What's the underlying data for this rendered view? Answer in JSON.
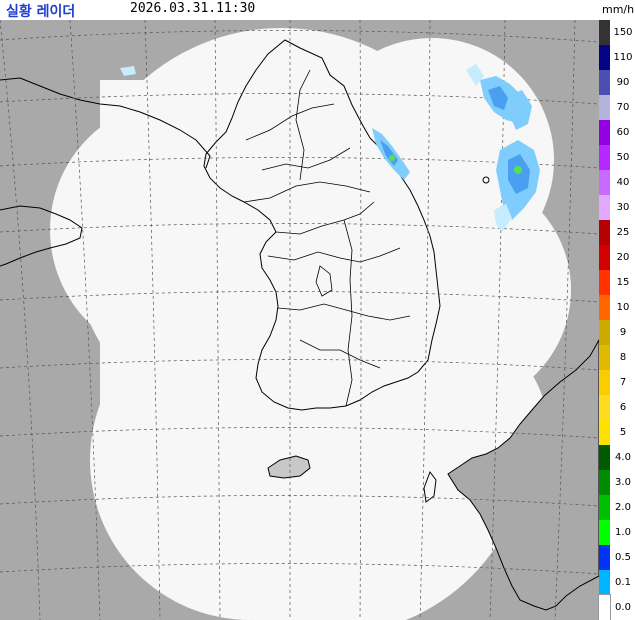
{
  "header": {
    "title": "실황 레이더",
    "timestamp": "2026.03.31.11:30",
    "unit": "mm/h"
  },
  "map": {
    "outside_color": "#a9a9a9",
    "coverage_color": "#f7f7f7",
    "land_outline_color": "#000000",
    "grid_line_style": "dashed",
    "echo_colors": [
      "#c6ecfd",
      "#7fcdfd",
      "#4a9ff0",
      "#58e14f",
      "#2daa2b"
    ]
  },
  "legend": {
    "items": [
      {
        "label": "150",
        "color": "#333333"
      },
      {
        "label": "110",
        "color": "#020485"
      },
      {
        "label": "90",
        "color": "#4c4eb1"
      },
      {
        "label": "70",
        "color": "#b3b4de"
      },
      {
        "label": "60",
        "color": "#9300e4"
      },
      {
        "label": "50",
        "color": "#b329ff"
      },
      {
        "label": "40",
        "color": "#c969ff"
      },
      {
        "label": "30",
        "color": "#e0a9ff"
      },
      {
        "label": "25",
        "color": "#b40000"
      },
      {
        "label": "20",
        "color": "#d20000"
      },
      {
        "label": "15",
        "color": "#ff3200"
      },
      {
        "label": "10",
        "color": "#ff6600"
      },
      {
        "label": "9",
        "color": "#ccaa00"
      },
      {
        "label": "8",
        "color": "#e0b900"
      },
      {
        "label": "7",
        "color": "#f9cd00"
      },
      {
        "label": "6",
        "color": "#ffdc1f"
      },
      {
        "label": "5",
        "color": "#ffe100"
      },
      {
        "label": "4.0",
        "color": "#005a00"
      },
      {
        "label": "3.0",
        "color": "#008c00"
      },
      {
        "label": "2.0",
        "color": "#00be00"
      },
      {
        "label": "1.0",
        "color": "#00ff00"
      },
      {
        "label": "0.5",
        "color": "#0033f5"
      },
      {
        "label": "0.1",
        "color": "#00b4ff"
      },
      {
        "label": "0.0",
        "color": "#ffffff"
      }
    ]
  }
}
